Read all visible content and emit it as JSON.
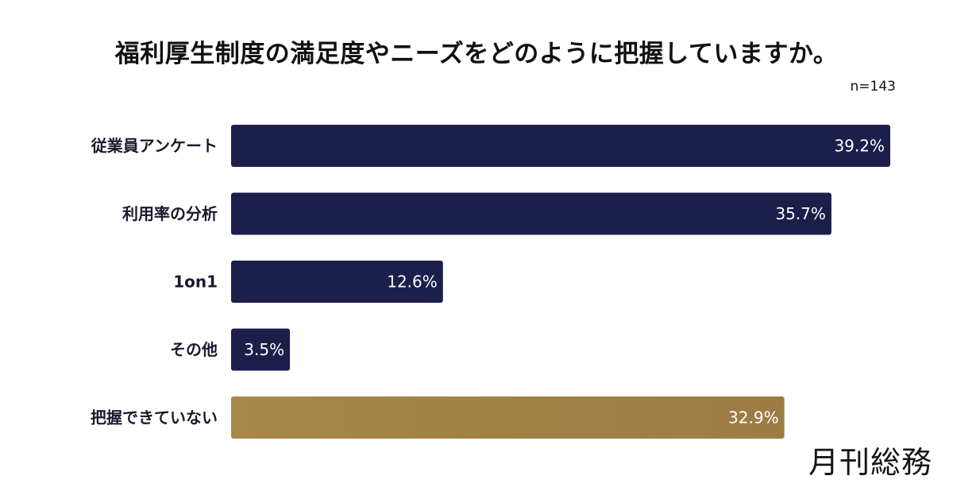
{
  "title": "福利厚生制度の満足度やニーズをどのように把握していますか。",
  "sample_size": "n=143",
  "brand": "月刊総務",
  "chart_data": {
    "type": "bar",
    "orientation": "horizontal",
    "title": "福利厚生制度の満足度やニーズをどのように把握していますか。",
    "categories": [
      "従業員アンケート",
      "利用率の分析",
      "1on1",
      "その他",
      "把握できていない"
    ],
    "values": [
      39.2,
      35.7,
      12.6,
      3.5,
      32.9
    ],
    "value_labels": [
      "39.2%",
      "35.7%",
      "12.6%",
      "3.5%",
      "32.9%"
    ],
    "unit": "%",
    "xlim": [
      0,
      40
    ],
    "grid": false,
    "legend": "none",
    "colors": {
      "bar": "#1c1f4a",
      "highlight_bar": "#a8874a",
      "highlight_index": 4,
      "value_label": "#ffffff",
      "category_label": "#1a1a2e"
    }
  }
}
